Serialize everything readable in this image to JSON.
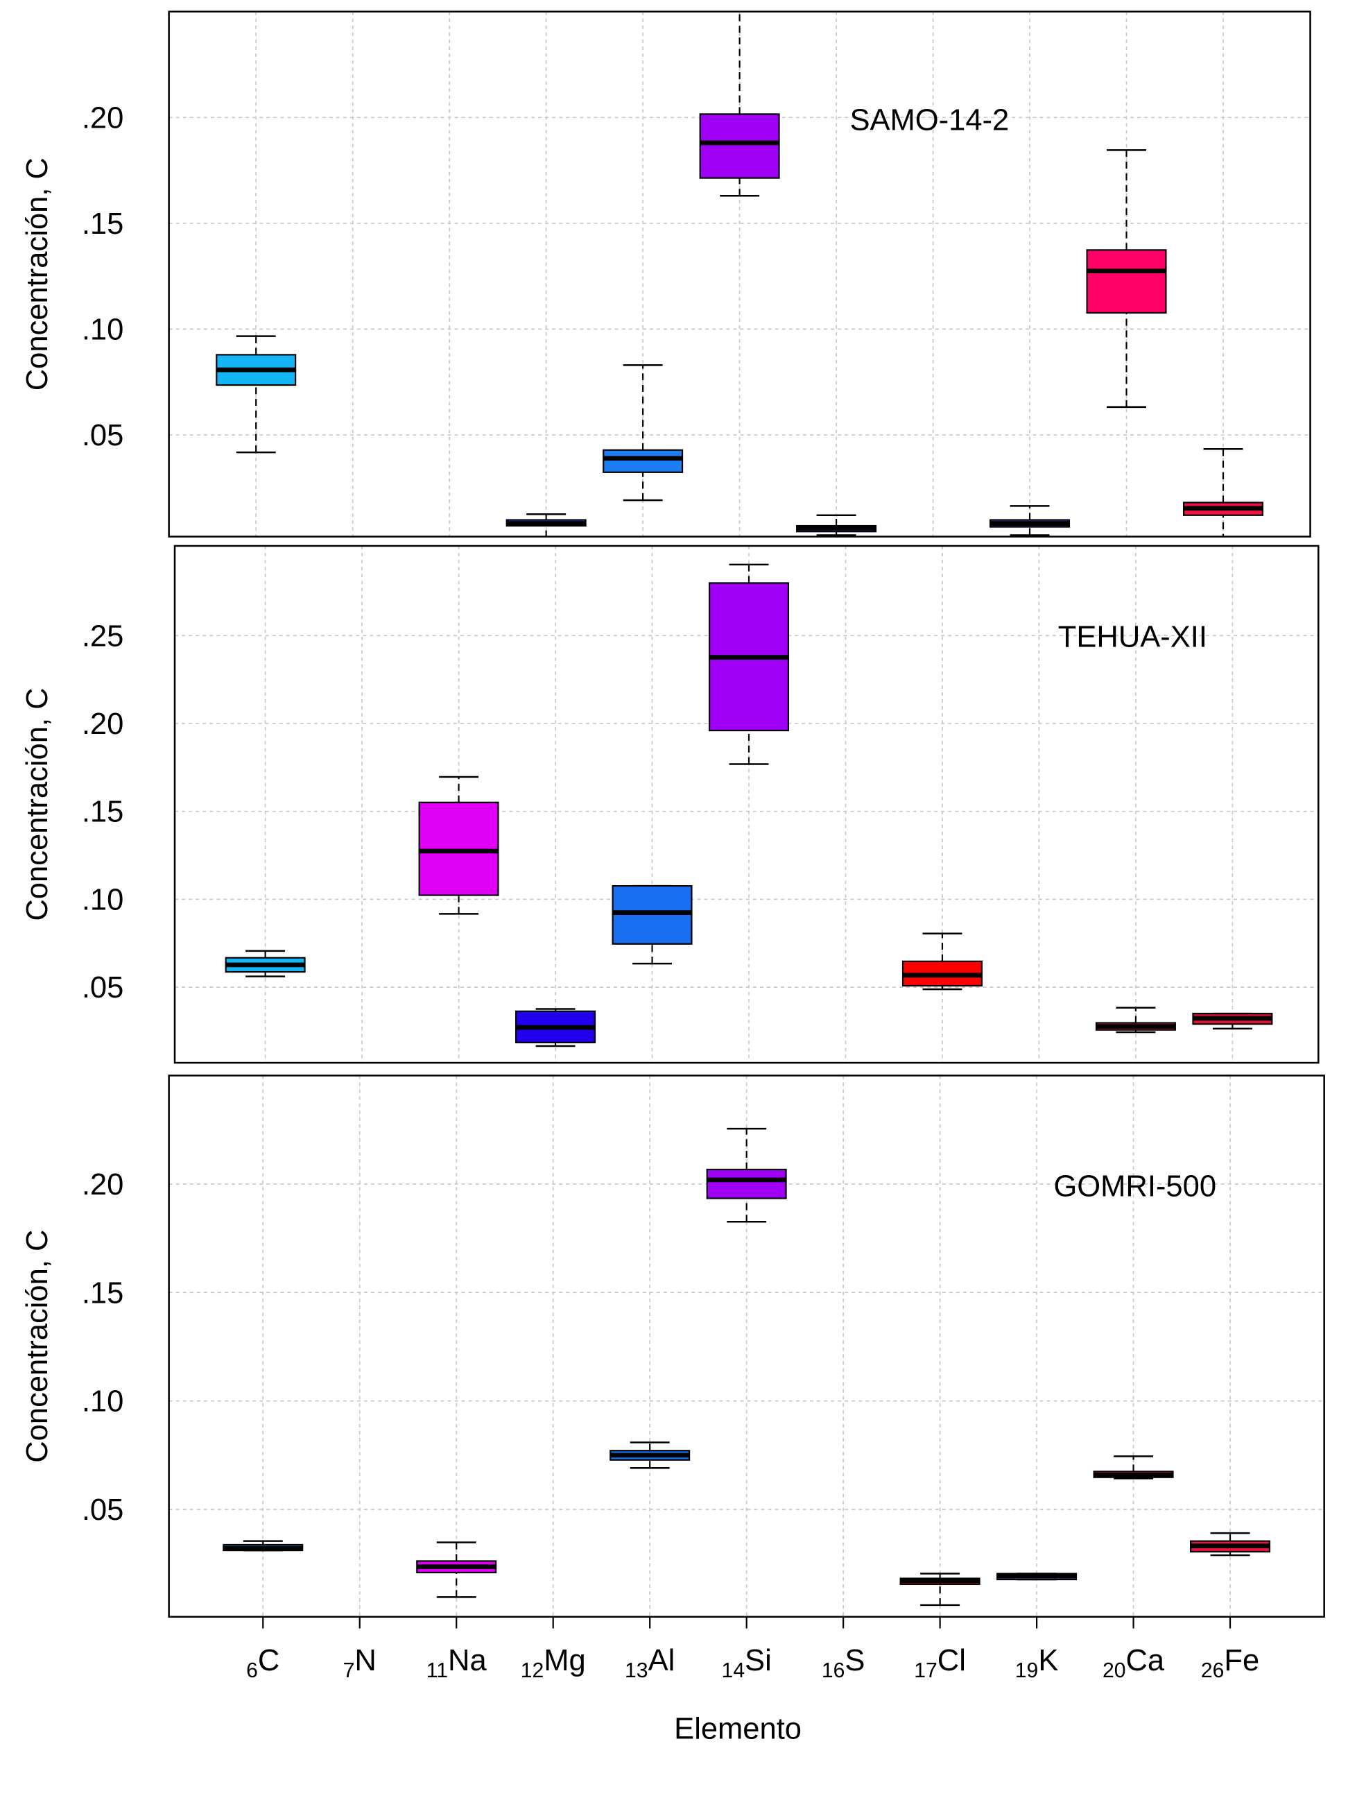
{
  "chart_data": [
    {
      "type": "box",
      "title": "SAMO-14-2",
      "ylabel": "Concentración, C",
      "ylim": [
        0.002,
        0.25
      ],
      "yticks": [
        {
          "value": 0.05,
          "label": ".05"
        },
        {
          "value": 0.1,
          "label": ".10"
        },
        {
          "value": 0.15,
          "label": ".15"
        },
        {
          "value": 0.2,
          "label": ".20"
        }
      ],
      "grid": true,
      "boxes": [
        {
          "min": 0.0418,
          "q1": 0.0736,
          "median": 0.0808,
          "q3": 0.0879,
          "max": 0.0967,
          "color": "#14b4f5"
        },
        null,
        null,
        {
          "min": 0.0016,
          "q1": 0.0071,
          "median": 0.0082,
          "q3": 0.0099,
          "max": 0.0126,
          "color": "#2a3fe0"
        },
        {
          "min": 0.0192,
          "q1": 0.0324,
          "median": 0.039,
          "q3": 0.0429,
          "max": 0.083,
          "color": "#1c7ef0"
        },
        {
          "min": 0.163,
          "q1": 0.1714,
          "median": 0.188,
          "q3": 0.2016,
          "max": 0.27,
          "color": "#a000f5"
        },
        {
          "min": 0.0027,
          "q1": 0.0044,
          "median": 0.006,
          "q3": 0.0071,
          "max": 0.0121,
          "color": "#2244dd"
        },
        null,
        {
          "min": 0.0027,
          "q1": 0.0066,
          "median": 0.0082,
          "q3": 0.0099,
          "max": 0.0165,
          "color": "#6633cc"
        },
        {
          "min": 0.0632,
          "q1": 0.1077,
          "median": 0.1275,
          "q3": 0.1374,
          "max": 0.1846,
          "color": "#ff0066"
        },
        {
          "min": 0.0,
          "q1": 0.0121,
          "median": 0.0154,
          "q3": 0.0181,
          "max": 0.0434,
          "color": "#ee1144"
        }
      ]
    },
    {
      "type": "box",
      "title": "TEHUA-XII",
      "ylabel": "Concentración, C",
      "ylim": [
        0.007,
        0.301
      ],
      "yticks": [
        {
          "value": 0.05,
          "label": ".05"
        },
        {
          "value": 0.1,
          "label": ".10"
        },
        {
          "value": 0.15,
          "label": ".15"
        },
        {
          "value": 0.2,
          "label": ".20"
        },
        {
          "value": 0.25,
          "label": ".25"
        }
      ],
      "grid": true,
      "boxes": [
        {
          "min": 0.0561,
          "q1": 0.0587,
          "median": 0.0627,
          "q3": 0.0667,
          "max": 0.0706,
          "color": "#14b4f5"
        },
        null,
        {
          "min": 0.0917,
          "q1": 0.1023,
          "median": 0.1274,
          "q3": 0.1551,
          "max": 0.1696,
          "color": "#e000f5"
        },
        {
          "min": 0.0165,
          "q1": 0.0185,
          "median": 0.0271,
          "q3": 0.0363,
          "max": 0.0376,
          "color": "#2200ee"
        },
        {
          "min": 0.0634,
          "q1": 0.0746,
          "median": 0.0924,
          "q3": 0.1076,
          "max": 0.1076,
          "color": "#1a6ef0"
        },
        {
          "min": 0.1769,
          "q1": 0.196,
          "median": 0.2376,
          "q3": 0.2799,
          "max": 0.2904,
          "color": "#a000f5"
        },
        null,
        {
          "min": 0.0488,
          "q1": 0.0508,
          "median": 0.0568,
          "q3": 0.0647,
          "max": 0.0805,
          "color": "#ff0000"
        },
        null,
        {
          "min": 0.0244,
          "q1": 0.0257,
          "median": 0.0277,
          "q3": 0.0297,
          "max": 0.0383,
          "color": "#ff2255"
        },
        {
          "min": 0.0264,
          "q1": 0.029,
          "median": 0.0323,
          "q3": 0.035,
          "max": 0.035,
          "color": "#dd1133"
        }
      ]
    },
    {
      "type": "box",
      "title": "GOMRI-500",
      "ylabel": "Concentración, C",
      "xlabel": "Elemento",
      "categories": [
        "C",
        "N",
        "Na",
        "Mg",
        "Al",
        "Si",
        "S",
        "Cl",
        "K",
        "Ca",
        "Fe"
      ],
      "atomic_numbers": [
        "6",
        "7",
        "11",
        "12",
        "13",
        "14",
        "16",
        "17",
        "19",
        "20",
        "26"
      ],
      "ylim": [
        0.0005,
        0.25
      ],
      "yticks": [
        {
          "value": 0.05,
          "label": ".05"
        },
        {
          "value": 0.1,
          "label": ".10"
        },
        {
          "value": 0.15,
          "label": ".15"
        },
        {
          "value": 0.2,
          "label": ".20"
        }
      ],
      "grid": true,
      "boxes": [
        {
          "min": 0.0311,
          "q1": 0.0311,
          "median": 0.0321,
          "q3": 0.0337,
          "max": 0.0354,
          "color": "#14b4f5"
        },
        null,
        {
          "min": 0.0096,
          "q1": 0.0209,
          "median": 0.0236,
          "q3": 0.0262,
          "max": 0.0348,
          "color": "#e000f5"
        },
        null,
        {
          "min": 0.0691,
          "q1": 0.0728,
          "median": 0.075,
          "q3": 0.0771,
          "max": 0.0809,
          "color": "#1a6ef0"
        },
        {
          "min": 0.1826,
          "q1": 0.1934,
          "median": 0.2019,
          "q3": 0.2067,
          "max": 0.2255,
          "color": "#a000f5"
        },
        null,
        {
          "min": 0.0059,
          "q1": 0.0155,
          "median": 0.0171,
          "q3": 0.0182,
          "max": 0.0204,
          "color": "#ff0000"
        },
        {
          "min": 0.0177,
          "q1": 0.0177,
          "median": 0.0193,
          "q3": 0.0204,
          "max": 0.0204,
          "color": "#6633cc"
        },
        {
          "min": 0.0643,
          "q1": 0.0648,
          "median": 0.0659,
          "q3": 0.0675,
          "max": 0.0745,
          "color": "#ff0066"
        },
        {
          "min": 0.0289,
          "q1": 0.0305,
          "median": 0.0332,
          "q3": 0.0354,
          "max": 0.0391,
          "color": "#ee1144"
        }
      ]
    }
  ]
}
